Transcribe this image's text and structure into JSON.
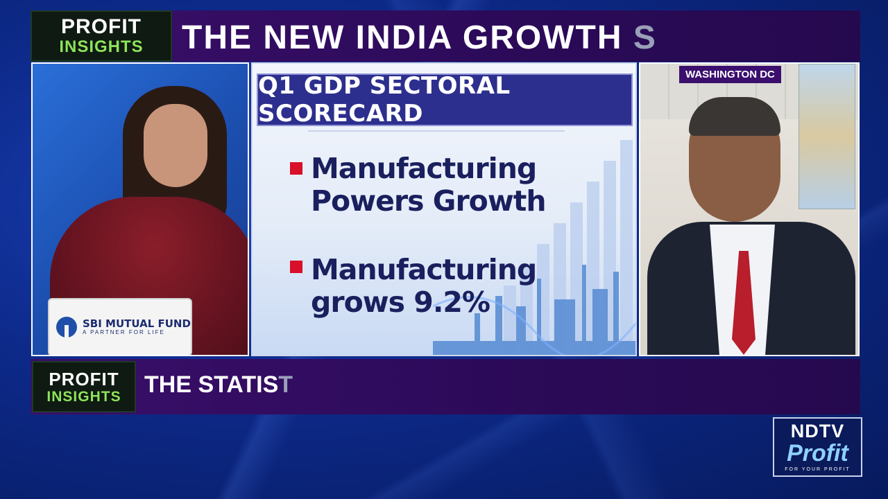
{
  "top_banner": {
    "logo_line1": "PROFIT",
    "logo_line2": "INSIGHTS",
    "headline": "THE NEW INDIA GROWTH",
    "headline_tail": "S"
  },
  "anchor_panel": {
    "sponsor_name": "SBI MUTUAL FUND",
    "sponsor_tagline": "A PARTNER FOR LIFE"
  },
  "graphic_panel": {
    "title": "Q1 GDP SECTORAL SCORECARD",
    "points": [
      [
        "Manufacturing",
        "Powers Growth"
      ],
      [
        "Manufacturing",
        "grows 9.2%"
      ]
    ]
  },
  "guest_panel": {
    "location": "WASHINGTON DC"
  },
  "bottom_ticker": {
    "logo_line1": "PROFIT",
    "logo_line2": "INSIGHTS",
    "headline": "THE STATIS",
    "headline_tail": "T"
  },
  "channel_logo": {
    "line1": "NDTV",
    "line2": "Profit",
    "line3": "FOR YOUR PROFIT"
  },
  "colors": {
    "banner_purple": "#2b0a58",
    "insights_green": "#8ee35a",
    "bullet_red": "#d8102a",
    "title_blue": "#2d2f8e"
  }
}
